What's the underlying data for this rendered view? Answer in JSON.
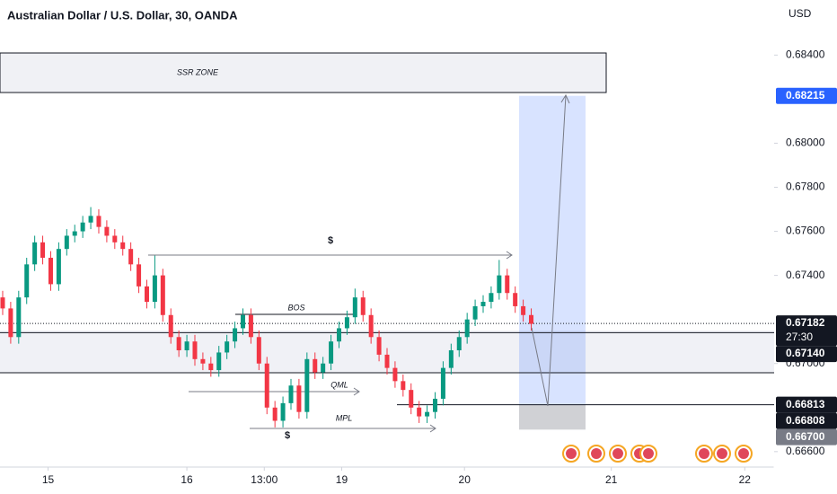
{
  "chart_data": {
    "type": "candlestick",
    "title": "Australian Dollar / U.S. Dollar, 30, OANDA",
    "currency": "USD",
    "up_color": "#089981",
    "down_color": "#f23645",
    "xlim": [
      0,
      290
    ],
    "ylim": [
      0.6653,
      0.6865
    ],
    "xticks": [
      {
        "value": 18,
        "label": "15"
      },
      {
        "value": 70,
        "label": "16"
      },
      {
        "value": 99,
        "label": "13:00"
      },
      {
        "value": 128,
        "label": "19"
      },
      {
        "value": 174,
        "label": "20"
      },
      {
        "value": 229,
        "label": "21"
      },
      {
        "value": 279,
        "label": "22"
      }
    ],
    "yticks": [
      {
        "value": 0.684,
        "label": "0.68400"
      },
      {
        "value": 0.68,
        "label": "0.68000"
      },
      {
        "value": 0.678,
        "label": "0.67800"
      },
      {
        "value": 0.676,
        "label": "0.67600"
      },
      {
        "value": 0.674,
        "label": "0.67400"
      },
      {
        "value": 0.67,
        "label": "0.67000"
      },
      {
        "value": 0.666,
        "label": "0.66600"
      }
    ],
    "x": [
      1,
      4,
      7,
      10,
      13,
      16,
      19,
      22,
      25,
      28,
      31,
      34,
      37,
      40,
      43,
      46,
      49,
      52,
      55,
      58,
      61,
      64,
      67,
      70,
      73,
      76,
      79,
      82,
      85,
      88,
      91,
      94,
      97,
      100,
      103,
      106,
      109,
      112,
      115,
      118,
      121,
      124,
      127,
      130,
      133,
      136,
      139,
      142,
      145,
      148,
      151,
      154,
      157,
      160,
      163,
      166,
      169,
      172,
      175,
      178,
      181,
      184,
      187,
      190,
      193,
      196,
      199
    ],
    "ohlc": [
      [
        0.673,
        0.6733,
        0.6722,
        0.6725
      ],
      [
        0.6725,
        0.6728,
        0.6709,
        0.6712
      ],
      [
        0.6712,
        0.6733,
        0.6709,
        0.673
      ],
      [
        0.673,
        0.6748,
        0.6727,
        0.6745
      ],
      [
        0.6745,
        0.6758,
        0.6742,
        0.6755
      ],
      [
        0.6755,
        0.6758,
        0.6745,
        0.6748
      ],
      [
        0.6748,
        0.6751,
        0.6733,
        0.6736
      ],
      [
        0.6736,
        0.6755,
        0.6733,
        0.6752
      ],
      [
        0.6752,
        0.6761,
        0.6749,
        0.6758
      ],
      [
        0.6758,
        0.6763,
        0.6755,
        0.676
      ],
      [
        0.676,
        0.6767,
        0.6757,
        0.6764
      ],
      [
        0.6764,
        0.6771,
        0.6761,
        0.6767
      ],
      [
        0.6767,
        0.677,
        0.6759,
        0.6762
      ],
      [
        0.6762,
        0.6765,
        0.6755,
        0.6758
      ],
      [
        0.6758,
        0.6761,
        0.6752,
        0.6755
      ],
      [
        0.6755,
        0.6758,
        0.6749,
        0.6752
      ],
      [
        0.6752,
        0.6755,
        0.6742,
        0.6745
      ],
      [
        0.6745,
        0.6748,
        0.6732,
        0.6735
      ],
      [
        0.6735,
        0.6738,
        0.6725,
        0.6728
      ],
      [
        0.6728,
        0.6749,
        0.6725,
        0.674
      ],
      [
        0.674,
        0.6743,
        0.6719,
        0.6722
      ],
      [
        0.6722,
        0.6725,
        0.6709,
        0.6712
      ],
      [
        0.6712,
        0.6715,
        0.6703,
        0.6706
      ],
      [
        0.6706,
        0.6713,
        0.6703,
        0.671
      ],
      [
        0.671,
        0.6713,
        0.6699,
        0.6702
      ],
      [
        0.6702,
        0.6705,
        0.6697,
        0.67
      ],
      [
        0.67,
        0.6703,
        0.6694,
        0.6697
      ],
      [
        0.6697,
        0.6708,
        0.6694,
        0.6705
      ],
      [
        0.6705,
        0.6713,
        0.6702,
        0.671
      ],
      [
        0.671,
        0.6719,
        0.6707,
        0.6716
      ],
      [
        0.6716,
        0.6725,
        0.6713,
        0.6722
      ],
      [
        0.6722,
        0.6725,
        0.6709,
        0.6712
      ],
      [
        0.6712,
        0.6715,
        0.6697,
        0.67
      ],
      [
        0.67,
        0.6703,
        0.6677,
        0.668
      ],
      [
        0.668,
        0.6683,
        0.6671,
        0.6674
      ],
      [
        0.6674,
        0.6685,
        0.6671,
        0.6682
      ],
      [
        0.6682,
        0.6693,
        0.6679,
        0.669
      ],
      [
        0.669,
        0.6693,
        0.6675,
        0.6678
      ],
      [
        0.6678,
        0.6705,
        0.6675,
        0.6702
      ],
      [
        0.6702,
        0.6705,
        0.6693,
        0.6696
      ],
      [
        0.6696,
        0.6703,
        0.6693,
        0.67
      ],
      [
        0.67,
        0.6713,
        0.6697,
        0.671
      ],
      [
        0.671,
        0.6719,
        0.6707,
        0.6716
      ],
      [
        0.6716,
        0.6724,
        0.6713,
        0.6721
      ],
      [
        0.6721,
        0.6734,
        0.6718,
        0.673
      ],
      [
        0.673,
        0.6733,
        0.6719,
        0.6722
      ],
      [
        0.6722,
        0.6725,
        0.6709,
        0.6712
      ],
      [
        0.6712,
        0.6715,
        0.6701,
        0.6704
      ],
      [
        0.6704,
        0.6707,
        0.6695,
        0.6698
      ],
      [
        0.6698,
        0.6701,
        0.6689,
        0.6692
      ],
      [
        0.6692,
        0.6695,
        0.6685,
        0.6688
      ],
      [
        0.6688,
        0.6691,
        0.6677,
        0.668
      ],
      [
        0.668,
        0.6683,
        0.6673,
        0.6676
      ],
      [
        0.6676,
        0.6681,
        0.6673,
        0.6678
      ],
      [
        0.6678,
        0.6687,
        0.6675,
        0.6684
      ],
      [
        0.6684,
        0.6701,
        0.6681,
        0.6698
      ],
      [
        0.6698,
        0.6709,
        0.6695,
        0.6706
      ],
      [
        0.6706,
        0.6715,
        0.6703,
        0.6712
      ],
      [
        0.6712,
        0.6723,
        0.6709,
        0.672
      ],
      [
        0.672,
        0.6729,
        0.6717,
        0.6726
      ],
      [
        0.6726,
        0.6731,
        0.6723,
        0.6728
      ],
      [
        0.6728,
        0.6735,
        0.6725,
        0.6732
      ],
      [
        0.6732,
        0.6747,
        0.6729,
        0.674
      ],
      [
        0.674,
        0.6743,
        0.6729,
        0.6732
      ],
      [
        0.6732,
        0.6735,
        0.6723,
        0.6726
      ],
      [
        0.6726,
        0.6729,
        0.6719,
        0.6722
      ],
      [
        0.6722,
        0.6725,
        0.6715,
        0.6718
      ]
    ],
    "current_price": {
      "value": 0.67182,
      "label": "0.67182"
    },
    "countdown": "27:30",
    "level": {
      "value": 0.6714,
      "label": "0.67140"
    },
    "level2": {
      "value": 0.66808,
      "label": "0.66808"
    },
    "position": {
      "target": 0.68215,
      "entry": 0.66813,
      "stop": {
        "value": 0.667,
        "label": "0.66700"
      }
    },
    "annotations": {
      "zone": "SSR ZONE",
      "bos": "BOS",
      "qml": "QML",
      "mpl": "MPL",
      "liq_top": "$",
      "liq_bottom": "$"
    }
  }
}
